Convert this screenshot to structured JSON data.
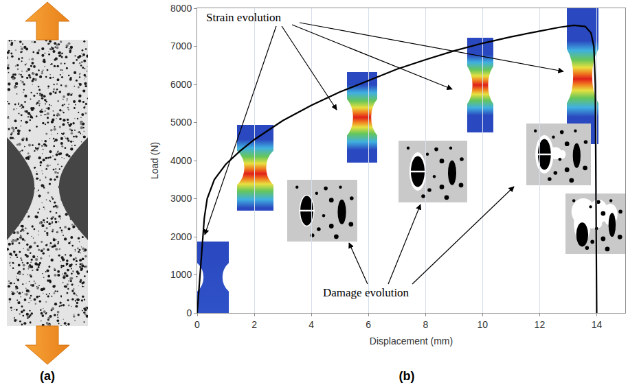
{
  "chart_data": {
    "type": "line",
    "x": [
      0,
      0.1,
      0.2,
      0.25,
      0.35,
      0.6,
      1,
      1.5,
      2,
      3,
      4,
      5,
      6,
      7,
      8,
      9,
      10,
      11,
      12,
      12.7,
      13.2,
      13.6,
      13.8,
      13.9,
      13.95,
      13.98,
      14
    ],
    "values": [
      0,
      1000,
      2000,
      2500,
      3000,
      3500,
      3900,
      4250,
      4550,
      5050,
      5450,
      5800,
      6100,
      6400,
      6650,
      6880,
      7080,
      7250,
      7400,
      7500,
      7550,
      7520,
      7350,
      7000,
      6000,
      3000,
      0
    ],
    "color": "#000000",
    "xlabel": "Displacement (mm)",
    "ylabel": "Load (N)",
    "xlim": [
      0,
      15
    ],
    "xticks": [
      0,
      2,
      4,
      6,
      8,
      10,
      12,
      14
    ],
    "ylim": [
      0,
      8000
    ],
    "yticks": [
      0,
      1000,
      2000,
      3000,
      4000,
      5000,
      6000,
      7000,
      8000
    ],
    "grid": "x",
    "annotations": [
      "Strain evolution",
      "Damage evolution"
    ],
    "panel_labels": [
      "(a)",
      "(b)"
    ]
  }
}
